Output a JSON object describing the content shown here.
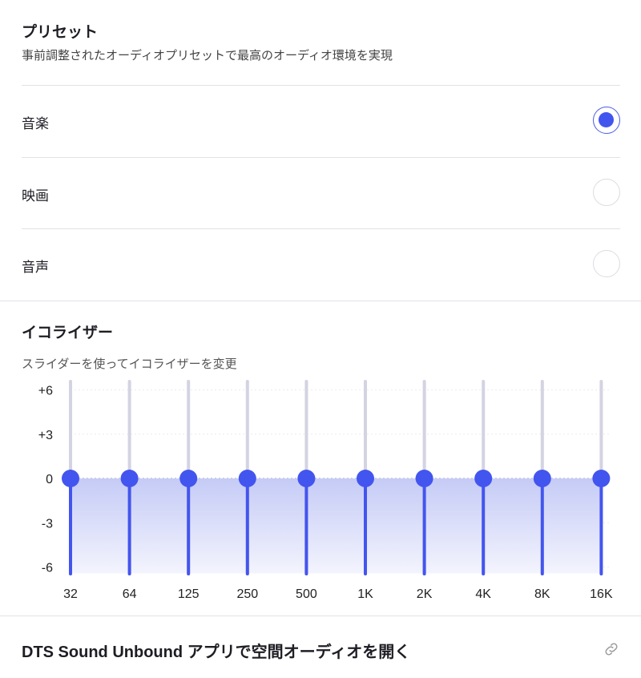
{
  "presets": {
    "title": "プリセット",
    "subtitle": "事前調整されたオーディオプリセットで最高のオーディオ環境を実現",
    "options": [
      {
        "label": "音楽",
        "selected": true
      },
      {
        "label": "映画",
        "selected": false
      },
      {
        "label": "音声",
        "selected": false
      }
    ]
  },
  "equalizer": {
    "title": "イコライザー",
    "subtitle": "スライダーを使ってイコライザーを変更"
  },
  "chart_data": {
    "type": "bar",
    "categories": [
      "32",
      "64",
      "125",
      "250",
      "500",
      "1K",
      "2K",
      "4K",
      "8K",
      "16K"
    ],
    "values": [
      0,
      0,
      0,
      0,
      0,
      0,
      0,
      0,
      0,
      0
    ],
    "yticks": [
      "+6",
      "+3",
      "0",
      "-3",
      "-6"
    ],
    "ylim": [
      -6,
      6
    ],
    "colors": {
      "accent": "#4355ef",
      "track": "#d3d3e2"
    }
  },
  "footer": {
    "link_label": "DTS Sound Unbound アプリで空間オーディオを開く",
    "icon": "link-icon"
  }
}
